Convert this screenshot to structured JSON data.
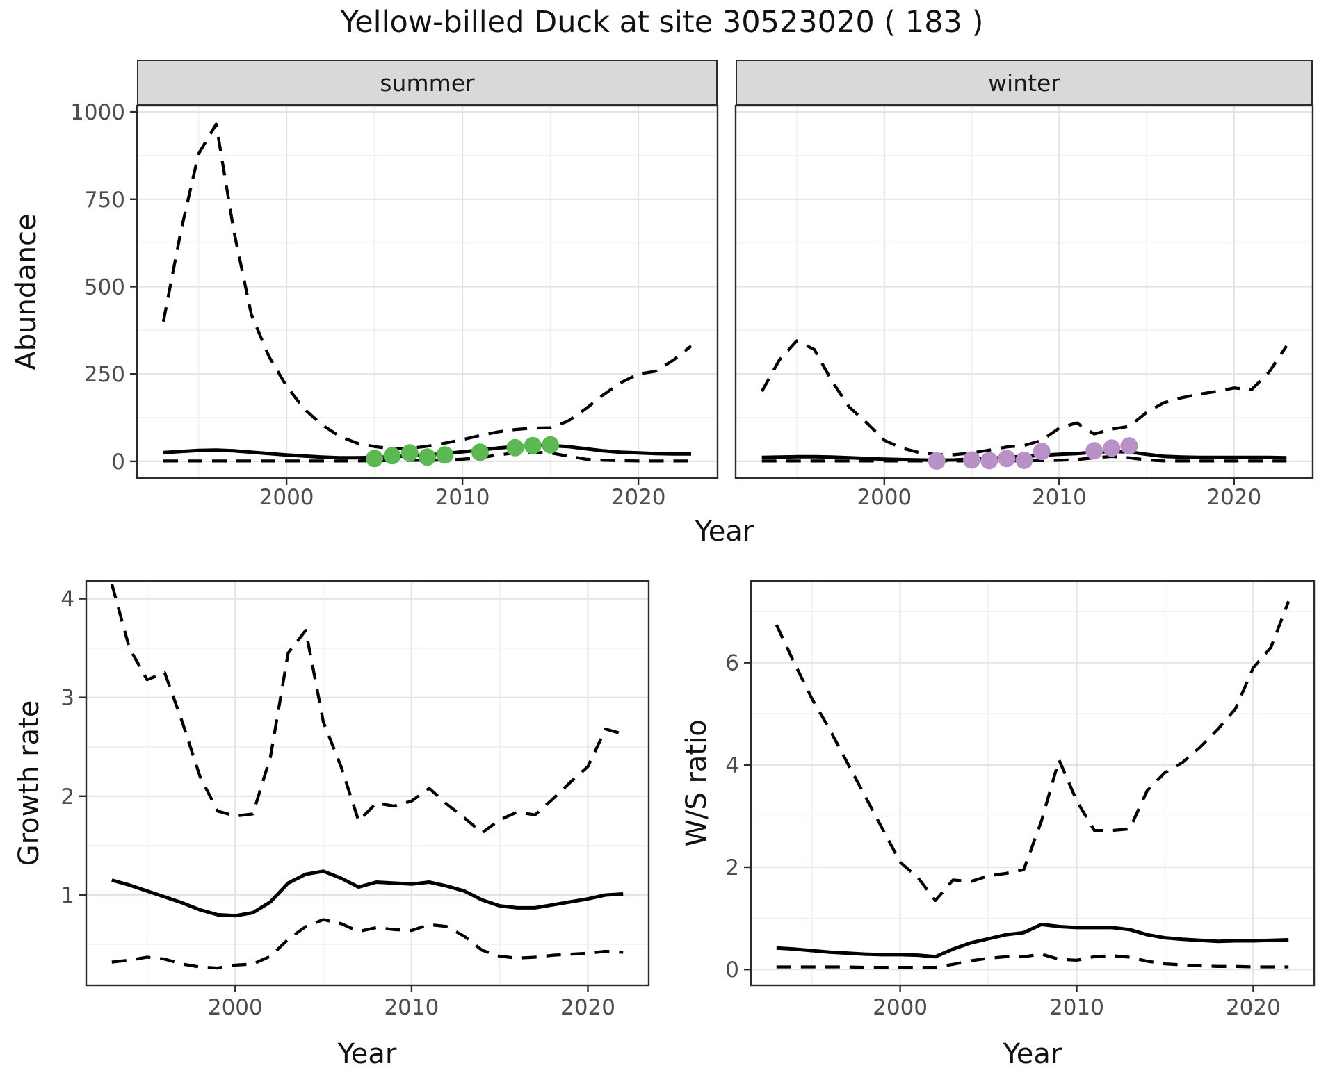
{
  "title": "Yellow-billed Duck at site 30523020 ( 183 )",
  "facets": [
    "summer",
    "winter"
  ],
  "labels": {
    "year": "Year",
    "abundance": "Abundance",
    "growth": "Growth rate",
    "ws": "W/S ratio"
  },
  "colors": {
    "line": "#000000",
    "summer_points": "#5cb852",
    "winter_points": "#b891c7",
    "grid_major": "#e4e4e4",
    "grid_minor": "#efefef",
    "strip_bg": "#d9d9d9",
    "panel_border": "#2b2b2b",
    "tick_text": "#4d4d4d"
  },
  "chart_data": [
    {
      "key": "abundance_summer",
      "type": "line",
      "title": "summer",
      "xlabel": "Year",
      "ylabel": "Abundance",
      "xlim": [
        1991.5,
        2024.5
      ],
      "ylim": [
        -48,
        1018
      ],
      "xticks": [
        2000,
        2010,
        2020
      ],
      "yticks": [
        0,
        250,
        500,
        750,
        1000
      ],
      "xminor": [
        1995,
        2005,
        2015
      ],
      "yminor": [
        125,
        375,
        625,
        875
      ],
      "x": [
        1993,
        1994,
        1995,
        1996,
        1997,
        1998,
        1999,
        2000,
        2001,
        2002,
        2003,
        2004,
        2005,
        2006,
        2007,
        2008,
        2009,
        2010,
        2011,
        2012,
        2013,
        2014,
        2015,
        2016,
        2017,
        2018,
        2019,
        2020,
        2021,
        2022,
        2023
      ],
      "series": [
        {
          "name": "upper95",
          "style": "dashed",
          "values": [
            400,
            660,
            880,
            965,
            660,
            420,
            300,
            215,
            150,
            105,
            72,
            52,
            42,
            36,
            37,
            43,
            52,
            62,
            74,
            84,
            91,
            95,
            96,
            115,
            150,
            190,
            225,
            250,
            258,
            290,
            330
          ]
        },
        {
          "name": "median",
          "style": "solid",
          "values": [
            25,
            28,
            31,
            32,
            30,
            26,
            22,
            18,
            15,
            12,
            10,
            10,
            11,
            13,
            16,
            18,
            22,
            27,
            32,
            38,
            42,
            45,
            45,
            42,
            36,
            30,
            26,
            24,
            22,
            21,
            21
          ]
        },
        {
          "name": "lower95",
          "style": "dashed",
          "values": [
            1,
            1,
            1,
            1,
            1,
            1,
            1,
            1,
            1,
            1,
            1,
            1,
            2,
            2,
            3,
            3,
            4,
            6,
            10,
            18,
            24,
            26,
            24,
            15,
            6,
            3,
            2,
            1,
            1,
            1,
            1
          ]
        },
        {
          "name": "observations",
          "style": "points",
          "color": "#5cb852",
          "x": [
            2005,
            2006,
            2007,
            2008,
            2009,
            2011,
            2013,
            2014,
            2015
          ],
          "values": [
            8,
            16,
            24,
            12,
            18,
            26,
            39,
            45,
            47
          ]
        }
      ]
    },
    {
      "key": "abundance_winter",
      "type": "line",
      "title": "winter",
      "xlabel": "Year",
      "ylabel": "Abundance",
      "xlim": [
        1991.5,
        2024.5
      ],
      "ylim": [
        -48,
        1018
      ],
      "xticks": [
        2000,
        2010,
        2020
      ],
      "yticks": [
        0,
        250,
        500,
        750,
        1000
      ],
      "xminor": [
        1995,
        2005,
        2015
      ],
      "yminor": [
        125,
        375,
        625,
        875
      ],
      "x": [
        1993,
        1994,
        1995,
        1996,
        1997,
        1998,
        1999,
        2000,
        2001,
        2002,
        2003,
        2004,
        2005,
        2006,
        2007,
        2008,
        2009,
        2010,
        2011,
        2012,
        2013,
        2014,
        2015,
        2016,
        2017,
        2018,
        2019,
        2020,
        2021,
        2022,
        2023
      ],
      "series": [
        {
          "name": "upper95",
          "style": "dashed",
          "values": [
            200,
            290,
            345,
            320,
            230,
            155,
            110,
            60,
            38,
            25,
            19,
            19,
            24,
            32,
            41,
            45,
            60,
            95,
            110,
            78,
            92,
            100,
            140,
            168,
            182,
            192,
            200,
            210,
            205,
            255,
            330
          ]
        },
        {
          "name": "median",
          "style": "solid",
          "values": [
            11,
            12,
            13,
            13,
            12,
            10,
            8,
            6,
            5,
            4,
            3,
            4,
            6,
            8,
            11,
            14,
            17,
            20,
            22,
            26,
            28,
            27,
            20,
            14,
            12,
            11,
            11,
            11,
            11,
            11,
            10
          ]
        },
        {
          "name": "lower95",
          "style": "dashed",
          "values": [
            1,
            1,
            1,
            1,
            1,
            1,
            1,
            1,
            1,
            1,
            1,
            1,
            1,
            1,
            1,
            2,
            2,
            3,
            5,
            10,
            14,
            10,
            4,
            1,
            1,
            1,
            1,
            1,
            1,
            1,
            1
          ]
        },
        {
          "name": "observations",
          "style": "points",
          "color": "#b891c7",
          "x": [
            2003,
            2005,
            2006,
            2007,
            2008,
            2009,
            2012,
            2013,
            2014
          ],
          "values": [
            1,
            4,
            2,
            8,
            3,
            28,
            30,
            38,
            44
          ]
        }
      ]
    },
    {
      "key": "growth_rate",
      "type": "line",
      "title": "",
      "xlabel": "Year",
      "ylabel": "Growth rate",
      "xlim": [
        1991.55,
        2023.45
      ],
      "ylim": [
        0.085,
        4.18
      ],
      "xticks": [
        2000,
        2010,
        2020
      ],
      "yticks": [
        1,
        2,
        3,
        4
      ],
      "xminor": [
        1995,
        2005,
        2015
      ],
      "yminor": [
        0.5,
        1.5,
        2.5,
        3.5
      ],
      "x": [
        1993,
        1994,
        1995,
        1996,
        1997,
        1998,
        1999,
        2000,
        2001,
        2002,
        2003,
        2004,
        2005,
        2006,
        2007,
        2008,
        2009,
        2010,
        2011,
        2012,
        2013,
        2014,
        2015,
        2016,
        2017,
        2018,
        2019,
        2020,
        2021,
        2022
      ],
      "series": [
        {
          "name": "upper95",
          "style": "dashed",
          "values": [
            4.15,
            3.5,
            3.18,
            3.25,
            2.75,
            2.2,
            1.85,
            1.8,
            1.82,
            2.4,
            3.45,
            3.68,
            2.75,
            2.3,
            1.75,
            1.93,
            1.9,
            1.95,
            2.08,
            1.92,
            1.78,
            1.63,
            1.76,
            1.84,
            1.81,
            1.97,
            2.14,
            2.3,
            2.68,
            2.63
          ]
        },
        {
          "name": "median",
          "style": "solid",
          "values": [
            1.15,
            1.1,
            1.04,
            0.98,
            0.92,
            0.85,
            0.8,
            0.79,
            0.82,
            0.93,
            1.12,
            1.21,
            1.24,
            1.17,
            1.08,
            1.13,
            1.12,
            1.11,
            1.13,
            1.09,
            1.04,
            0.95,
            0.89,
            0.87,
            0.87,
            0.9,
            0.93,
            0.96,
            1.0,
            1.01
          ]
        },
        {
          "name": "lower95",
          "style": "dashed",
          "values": [
            0.32,
            0.34,
            0.37,
            0.35,
            0.3,
            0.27,
            0.26,
            0.29,
            0.3,
            0.38,
            0.55,
            0.68,
            0.75,
            0.71,
            0.63,
            0.67,
            0.65,
            0.64,
            0.7,
            0.68,
            0.58,
            0.44,
            0.38,
            0.36,
            0.37,
            0.39,
            0.4,
            0.41,
            0.43,
            0.42
          ]
        }
      ]
    },
    {
      "key": "ws_ratio",
      "type": "line",
      "title": "",
      "xlabel": "Year",
      "ylabel": "W/S ratio",
      "xlim": [
        1991.55,
        2023.45
      ],
      "ylim": [
        -0.31,
        7.6
      ],
      "xticks": [
        2000,
        2010,
        2020
      ],
      "yticks": [
        0,
        2,
        4,
        6
      ],
      "xminor": [
        1995,
        2005,
        2015
      ],
      "yminor": [
        1,
        3,
        5,
        7
      ],
      "x": [
        1993,
        1994,
        1995,
        1996,
        1997,
        1998,
        1999,
        2000,
        2001,
        2002,
        2003,
        2004,
        2005,
        2006,
        2007,
        2008,
        2009,
        2010,
        2011,
        2012,
        2013,
        2014,
        2015,
        2016,
        2017,
        2018,
        2019,
        2020,
        2021,
        2022
      ],
      "series": [
        {
          "name": "upper95",
          "style": "dashed",
          "values": [
            6.74,
            6.0,
            5.3,
            4.7,
            4.05,
            3.4,
            2.75,
            2.1,
            1.8,
            1.35,
            1.75,
            1.72,
            1.83,
            1.88,
            1.95,
            2.9,
            4.1,
            3.3,
            2.72,
            2.72,
            2.75,
            3.5,
            3.85,
            4.05,
            4.35,
            4.7,
            5.1,
            5.9,
            6.3,
            7.2
          ]
        },
        {
          "name": "median",
          "style": "solid",
          "values": [
            0.42,
            0.4,
            0.37,
            0.34,
            0.32,
            0.3,
            0.29,
            0.29,
            0.28,
            0.25,
            0.4,
            0.52,
            0.6,
            0.68,
            0.72,
            0.88,
            0.84,
            0.82,
            0.82,
            0.82,
            0.78,
            0.68,
            0.62,
            0.59,
            0.57,
            0.55,
            0.56,
            0.56,
            0.57,
            0.58
          ]
        },
        {
          "name": "lower95",
          "style": "dashed",
          "values": [
            0.05,
            0.05,
            0.05,
            0.05,
            0.05,
            0.04,
            0.04,
            0.04,
            0.04,
            0.04,
            0.1,
            0.17,
            0.22,
            0.25,
            0.25,
            0.3,
            0.2,
            0.18,
            0.25,
            0.27,
            0.24,
            0.16,
            0.11,
            0.09,
            0.07,
            0.06,
            0.06,
            0.05,
            0.05,
            0.05
          ]
        }
      ]
    }
  ]
}
